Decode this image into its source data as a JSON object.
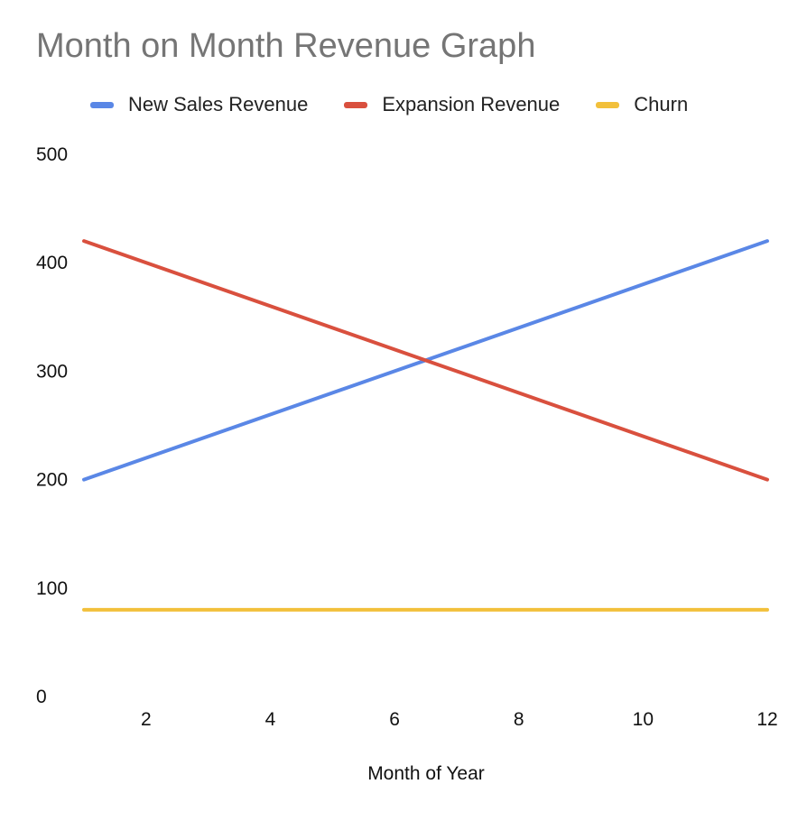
{
  "chart_data": {
    "type": "line",
    "title": "Month on Month Revenue Graph",
    "xlabel": "Month of Year",
    "ylabel": "",
    "x": [
      1,
      12
    ],
    "xlim": [
      1,
      12
    ],
    "ylim": [
      0,
      500
    ],
    "xticks": [
      2,
      4,
      6,
      8,
      10,
      12
    ],
    "yticks": [
      0,
      100,
      200,
      300,
      400,
      500
    ],
    "grid": false,
    "legend_position": "top",
    "series": [
      {
        "name": "New Sales Revenue",
        "color": "#5a87e6",
        "values": [
          200,
          420
        ]
      },
      {
        "name": "Expansion Revenue",
        "color": "#d9503e",
        "values": [
          420,
          200
        ]
      },
      {
        "name": "Churn",
        "color": "#f2c03b",
        "values": [
          80,
          80
        ]
      }
    ]
  }
}
